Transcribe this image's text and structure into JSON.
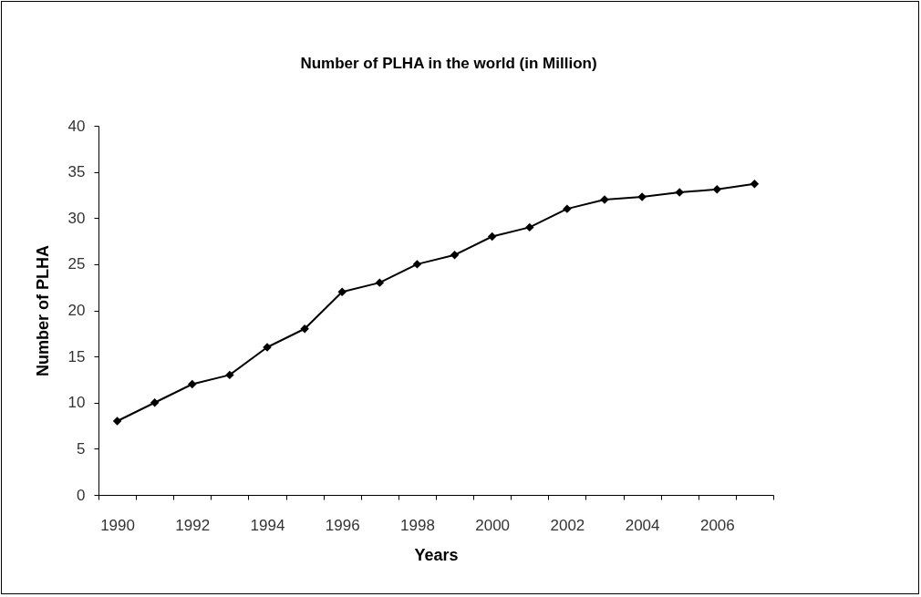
{
  "chart_data": {
    "type": "line",
    "title": "Number of PLHA in the world (in Million)",
    "xlabel": "Years",
    "ylabel": "Number of PLHA",
    "categories": [
      "1990",
      null,
      "1992",
      null,
      "1994",
      null,
      "1996",
      null,
      "1998",
      null,
      "2000",
      null,
      "2002",
      null,
      "2004",
      null,
      "2006",
      null
    ],
    "values": [
      8,
      10,
      12,
      13,
      16,
      18,
      22,
      23,
      25,
      26,
      28,
      29,
      31,
      32,
      32.3,
      32.8,
      33.1,
      33.7
    ],
    "color": "#000000",
    "ylim": [
      0,
      40
    ],
    "yticks": [
      0,
      5,
      10,
      15,
      20,
      25,
      30,
      35,
      40
    ],
    "marker": "diamond",
    "line_style": "solid"
  }
}
